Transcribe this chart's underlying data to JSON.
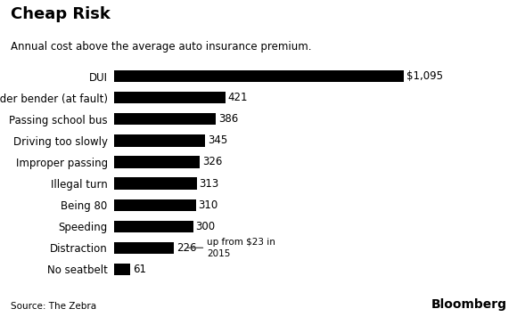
{
  "title": "Cheap Risk",
  "subtitle": "Annual cost above the average auto insurance premium.",
  "source": "Source: The Zebra",
  "bloomberg": "Bloomberg",
  "categories": [
    "DUI",
    "Fender bender (at fault)",
    "Passing school bus",
    "Driving too slowly",
    "Improper passing",
    "Illegal turn",
    "Being 80",
    "Speeding",
    "Distraction",
    "No seatbelt"
  ],
  "values": [
    1095,
    421,
    386,
    345,
    326,
    313,
    310,
    300,
    226,
    61
  ],
  "bar_color": "#000000",
  "background_color": "#ffffff",
  "annotation_note": "up from $23 in\n2015",
  "xlim": [
    0,
    1250
  ],
  "title_fontsize": 13,
  "subtitle_fontsize": 8.5,
  "label_fontsize": 8.5,
  "value_fontsize": 8.5,
  "source_fontsize": 7.5,
  "bloomberg_fontsize": 10,
  "bar_height": 0.55
}
